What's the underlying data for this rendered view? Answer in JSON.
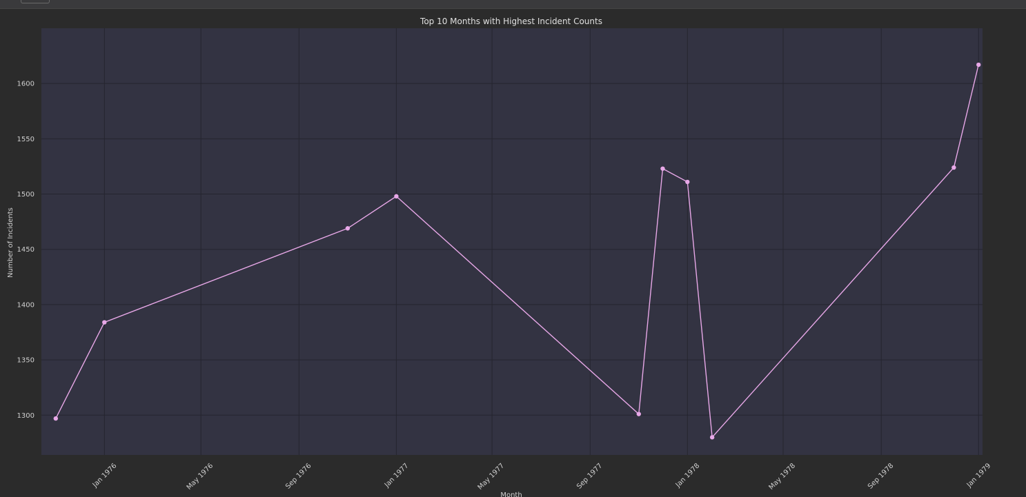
{
  "chart_data": {
    "type": "line",
    "title": "Top 10 Months with Highest Incident Counts",
    "xlabel": "Month",
    "ylabel": "Number of Incidents",
    "x_ticks": [
      "Jan 1976",
      "May 1976",
      "Sep 1976",
      "Jan 1977",
      "May 1977",
      "Sep 1977",
      "Jan 1978",
      "May 1978",
      "Sep 1978",
      "Jan 1979"
    ],
    "y_ticks": [
      1300,
      1350,
      1400,
      1450,
      1500,
      1550,
      1600
    ],
    "ylim": [
      1264,
      1650
    ],
    "xlim": [
      "1975-10-14",
      "1979-01-06"
    ],
    "grid": true,
    "series": [
      {
        "color": "#e8a8e8",
        "x": [
          "1975-11-01",
          "1976-01-01",
          "1976-11-01",
          "1977-01-01",
          "1977-11-01",
          "1977-12-01",
          "1978-01-01",
          "1978-02-01",
          "1978-12-01",
          "1979-01-01"
        ],
        "y": [
          1297,
          1384,
          1469,
          1498,
          1301,
          1523,
          1511,
          1280,
          1524,
          1617
        ]
      }
    ]
  },
  "colors": {
    "figure_background": "#2b2b2b",
    "plot_background": "#333342",
    "grid": "#25252f",
    "text": "#d0d0d0"
  }
}
